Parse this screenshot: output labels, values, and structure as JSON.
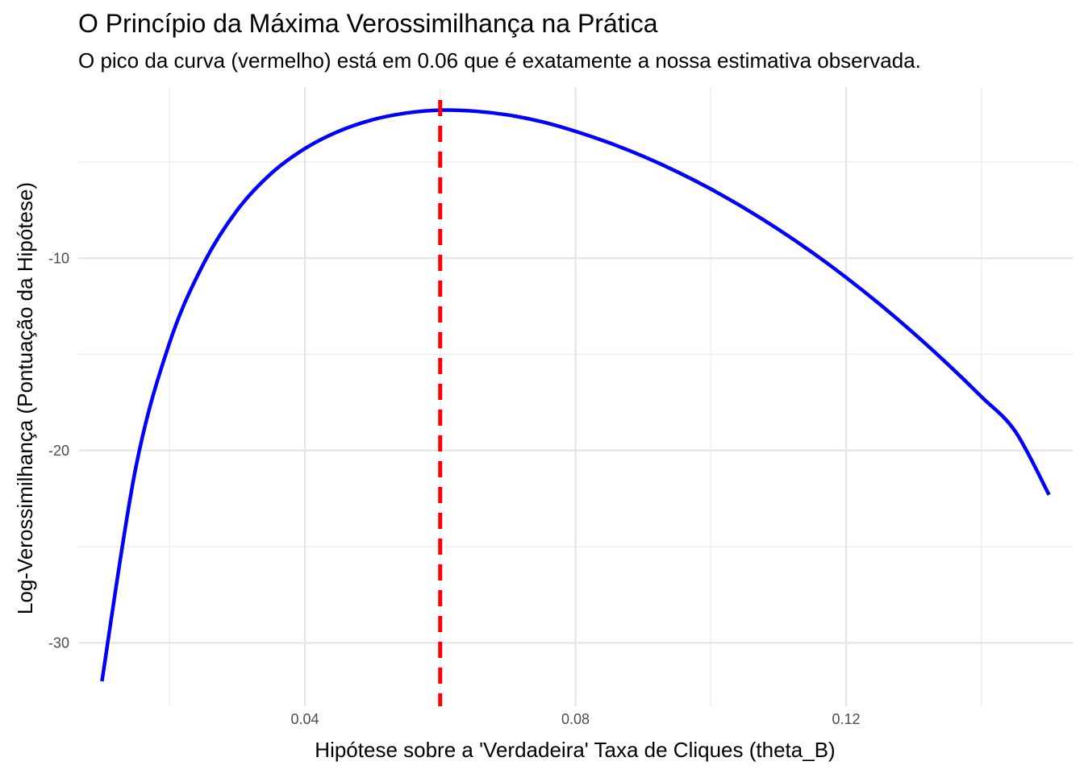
{
  "chart_data": {
    "type": "line",
    "title": "O Princípio da Máxima Verossimilhança na Prática",
    "subtitle": "O pico da curva (vermelho) está em 0.06 que é exatamente a nossa estimativa observada.",
    "xlabel": "Hipótese sobre a 'Verdadeira' Taxa de Cliques (theta_B)",
    "ylabel": "Log-Verossimilhança (Pontuação da Hipótese)",
    "xlim": [
      0.0065,
      0.1535
    ],
    "ylim": [
      -33.3,
      -1.1
    ],
    "x_ticks": [
      0.04,
      0.08,
      0.12
    ],
    "x_tick_labels": [
      "0.04",
      "0.08",
      "0.12"
    ],
    "x_minor_ticks": [
      0.02,
      0.06,
      0.1,
      0.14
    ],
    "y_ticks": [
      -30,
      -20,
      -10
    ],
    "y_tick_labels": [
      "-30",
      "-20",
      "-10"
    ],
    "y_minor_ticks": [
      -25,
      -15,
      -5
    ],
    "grid": true,
    "legend": "none",
    "series": [
      {
        "type": "curve",
        "color": "#0000ff",
        "x": [
          0.01,
          0.015,
          0.02,
          0.025,
          0.03,
          0.035,
          0.04,
          0.045,
          0.05,
          0.055,
          0.06,
          0.065,
          0.07,
          0.075,
          0.08,
          0.085,
          0.09,
          0.095,
          0.1,
          0.105,
          0.11,
          0.115,
          0.12,
          0.125,
          0.13,
          0.135,
          0.14,
          0.145,
          0.15
        ],
        "y": [
          -32.0,
          -20.9,
          -14.4,
          -10.3,
          -7.5,
          -5.6,
          -4.3,
          -3.4,
          -2.8,
          -2.45,
          -2.3,
          -2.35,
          -2.55,
          -2.9,
          -3.4,
          -4.0,
          -4.7,
          -5.5,
          -6.4,
          -7.4,
          -8.5,
          -9.7,
          -11.0,
          -12.4,
          -13.9,
          -15.5,
          -17.2,
          -19.0,
          -22.3
        ]
      }
    ],
    "reference_line": {
      "type": "vertical",
      "x": 0.06,
      "color": "#ff0000",
      "style": "dashed"
    }
  }
}
